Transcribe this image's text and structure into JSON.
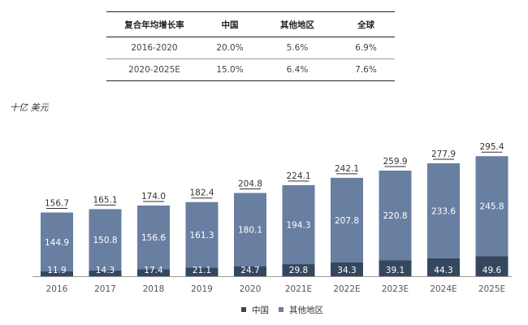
{
  "table": {
    "headers": [
      "复合年均增长率",
      "中国",
      "其他地区",
      "全球"
    ],
    "rows": [
      [
        "2016-2020",
        "20.0%",
        "5.6%",
        "6.9%"
      ],
      [
        "2020-2025E",
        "15.0%",
        "6.4%",
        "7.6%"
      ]
    ]
  },
  "unit_label": "十亿 美元",
  "colors": {
    "china": "#34475f",
    "rest": "#687fa2",
    "axis": "#999999",
    "text": "#333333"
  },
  "chart_data": {
    "type": "bar",
    "stacked": true,
    "categories": [
      "2016",
      "2017",
      "2018",
      "2019",
      "2020",
      "2021E",
      "2022E",
      "2023E",
      "2024E",
      "2025E"
    ],
    "series": [
      {
        "name": "中国",
        "values": [
          11.9,
          14.3,
          17.4,
          21.1,
          24.7,
          29.8,
          34.3,
          39.1,
          44.3,
          49.6
        ]
      },
      {
        "name": "其他地区",
        "values": [
          144.9,
          150.8,
          156.6,
          161.3,
          180.1,
          194.3,
          207.8,
          220.8,
          233.6,
          245.8
        ]
      }
    ],
    "totals": [
      "156.7",
      "165.1",
      "174.0",
      "182.4",
      "204.8",
      "224.1",
      "242.1",
      "259.9",
      "277.9",
      "295.4"
    ],
    "ylim": [
      0,
      300
    ],
    "legend_position": "bottom-center"
  }
}
